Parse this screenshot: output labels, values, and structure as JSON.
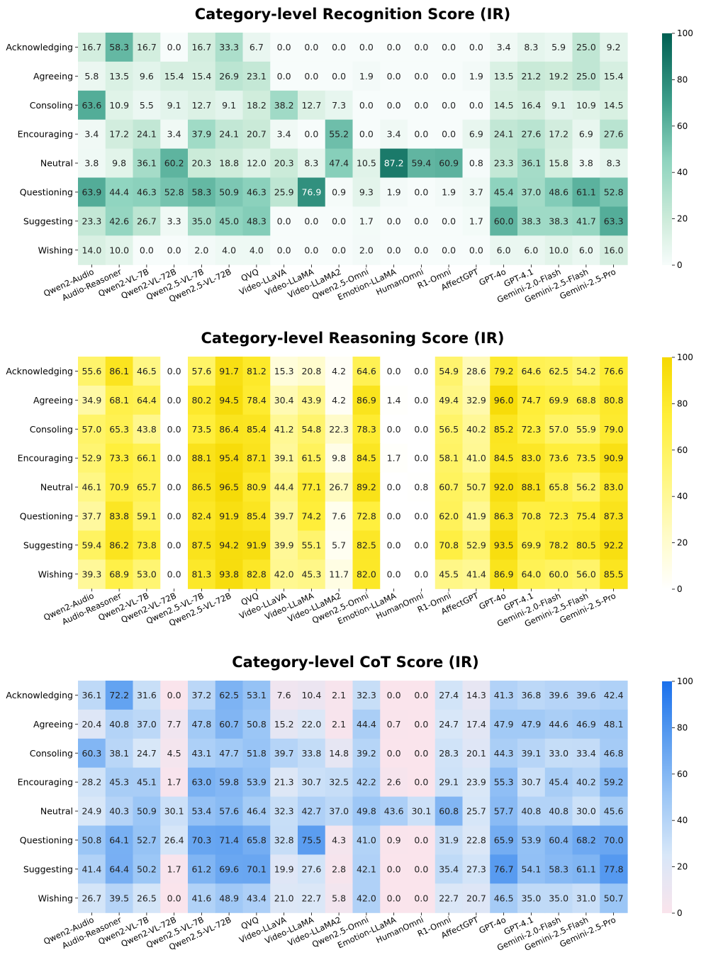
{
  "chart_data": [
    {
      "type": "heatmap",
      "title": "Category-level Recognition Score (IR)",
      "colormap": "teal",
      "zlim": [
        0,
        100
      ],
      "colorbar_ticks": [
        "0",
        "20",
        "40",
        "60",
        "80",
        "100"
      ],
      "rows": [
        "Acknowledging",
        "Agreeing",
        "Consoling",
        "Encouraging",
        "Neutral",
        "Questioning",
        "Suggesting",
        "Wishing"
      ],
      "columns": [
        "Qwen2-Audio",
        "Audio-Reasoner",
        "Qwen2-VL-7B",
        "Qwen2-VL-72B",
        "Qwen2.5-VL-7B",
        "Qwen2.5-VL-72B",
        "QVQ",
        "Video-LLaVA",
        "Video-LLaMA",
        "Video-LLaMA2",
        "Qwen2.5-Omni",
        "Emotion-LLaMA",
        "HumanOmni",
        "R1-Omni",
        "AffectGPT",
        "GPT-4o",
        "GPT-4.1",
        "Gemini-2.0-Flash",
        "Gemini-2.5-Flash",
        "Gemini-2.5-Pro"
      ],
      "values": [
        [
          "16.7",
          "58.3",
          "16.7",
          "0.0",
          "16.7",
          "33.3",
          "6.7",
          "0.0",
          "0.0",
          "0.0",
          "0.0",
          "0.0",
          "0.0",
          "0.0",
          "0.0",
          "3.4",
          "8.3",
          "5.9",
          "25.0",
          "9.2"
        ],
        [
          "5.8",
          "13.5",
          "9.6",
          "15.4",
          "15.4",
          "26.9",
          "23.1",
          "0.0",
          "0.0",
          "0.0",
          "1.9",
          "0.0",
          "0.0",
          "0.0",
          "1.9",
          "13.5",
          "21.2",
          "19.2",
          "25.0",
          "15.4"
        ],
        [
          "63.6",
          "10.9",
          "5.5",
          "9.1",
          "12.7",
          "9.1",
          "18.2",
          "38.2",
          "12.7",
          "7.3",
          "0.0",
          "0.0",
          "0.0",
          "0.0",
          "0.0",
          "14.5",
          "16.4",
          "9.1",
          "10.9",
          "14.5"
        ],
        [
          "3.4",
          "17.2",
          "24.1",
          "3.4",
          "37.9",
          "24.1",
          "20.7",
          "3.4",
          "0.0",
          "55.2",
          "0.0",
          "3.4",
          "0.0",
          "0.0",
          "6.9",
          "24.1",
          "27.6",
          "17.2",
          "6.9",
          "27.6"
        ],
        [
          "3.8",
          "9.8",
          "36.1",
          "60.2",
          "20.3",
          "18.8",
          "12.0",
          "20.3",
          "8.3",
          "47.4",
          "10.5",
          "87.2",
          "59.4",
          "60.9",
          "0.8",
          "23.3",
          "36.1",
          "15.8",
          "3.8",
          "8.3"
        ],
        [
          "63.9",
          "44.4",
          "46.3",
          "52.8",
          "58.3",
          "50.9",
          "46.3",
          "25.9",
          "76.9",
          "0.9",
          "9.3",
          "1.9",
          "0.0",
          "1.9",
          "3.7",
          "45.4",
          "37.0",
          "48.6",
          "61.1",
          "52.8"
        ],
        [
          "23.3",
          "42.6",
          "26.7",
          "3.3",
          "35.0",
          "45.0",
          "48.3",
          "0.0",
          "0.0",
          "0.0",
          "1.7",
          "0.0",
          "0.0",
          "0.0",
          "1.7",
          "60.0",
          "38.3",
          "38.3",
          "41.7",
          "63.3"
        ],
        [
          "14.0",
          "10.0",
          "0.0",
          "0.0",
          "2.0",
          "4.0",
          "4.0",
          "0.0",
          "0.0",
          "0.0",
          "2.0",
          "0.0",
          "0.0",
          "0.0",
          "0.0",
          "6.0",
          "6.0",
          "10.0",
          "6.0",
          "16.0"
        ]
      ]
    },
    {
      "type": "heatmap",
      "title": "Category-level Reasoning Score (IR)",
      "colormap": "yellow",
      "zlim": [
        0,
        100
      ],
      "colorbar_ticks": [
        "0",
        "20",
        "40",
        "60",
        "80",
        "100"
      ],
      "rows": [
        "Acknowledging",
        "Agreeing",
        "Consoling",
        "Encouraging",
        "Neutral",
        "Questioning",
        "Suggesting",
        "Wishing"
      ],
      "columns": [
        "Qwen2-Audio",
        "Audio-Reasoner",
        "Qwen2-VL-7B",
        "Qwen2-VL-72B",
        "Qwen2.5-VL-7B",
        "Qwen2.5-VL-72B",
        "QVQ",
        "Video-LLaVA",
        "Video-LLaMA",
        "Video-LLaMA2",
        "Qwen2.5-Omni",
        "Emotion-LLaMA",
        "HumanOmni",
        "R1-Omni",
        "AffectGPT",
        "GPT-4o",
        "GPT-4.1",
        "Gemini-2.0-Flash",
        "Gemini-2.5-Flash",
        "Gemini-2.5-Pro"
      ],
      "values": [
        [
          "55.6",
          "86.1",
          "46.5",
          "0.0",
          "57.6",
          "91.7",
          "81.2",
          "15.3",
          "20.8",
          "4.2",
          "64.6",
          "0.0",
          "0.0",
          "54.9",
          "28.6",
          "79.2",
          "64.6",
          "62.5",
          "54.2",
          "76.6"
        ],
        [
          "34.9",
          "68.1",
          "64.4",
          "0.0",
          "80.2",
          "94.5",
          "78.4",
          "30.4",
          "43.9",
          "4.2",
          "86.9",
          "1.4",
          "0.0",
          "49.4",
          "32.9",
          "96.0",
          "74.7",
          "69.9",
          "68.8",
          "80.8"
        ],
        [
          "57.0",
          "65.3",
          "43.8",
          "0.0",
          "73.5",
          "86.4",
          "85.4",
          "41.2",
          "54.8",
          "22.3",
          "78.3",
          "0.0",
          "0.0",
          "56.5",
          "40.2",
          "85.2",
          "72.3",
          "57.0",
          "55.9",
          "79.0"
        ],
        [
          "52.9",
          "73.3",
          "66.1",
          "0.0",
          "88.1",
          "95.4",
          "87.1",
          "39.1",
          "61.5",
          "9.8",
          "84.5",
          "1.7",
          "0.0",
          "58.1",
          "41.0",
          "84.5",
          "83.0",
          "73.6",
          "73.5",
          "90.9"
        ],
        [
          "46.1",
          "70.9",
          "65.7",
          "0.0",
          "86.5",
          "96.5",
          "80.9",
          "44.4",
          "77.1",
          "26.7",
          "89.2",
          "0.0",
          "0.8",
          "60.7",
          "50.7",
          "92.0",
          "88.1",
          "65.8",
          "56.2",
          "83.0"
        ],
        [
          "37.7",
          "83.8",
          "59.1",
          "0.0",
          "82.4",
          "91.9",
          "85.4",
          "39.7",
          "74.2",
          "7.6",
          "72.8",
          "0.0",
          "0.0",
          "62.0",
          "41.9",
          "86.3",
          "70.8",
          "72.3",
          "75.4",
          "87.3"
        ],
        [
          "59.4",
          "86.2",
          "73.8",
          "0.0",
          "87.5",
          "94.2",
          "91.9",
          "39.9",
          "55.1",
          "5.7",
          "82.5",
          "0.0",
          "0.0",
          "70.8",
          "52.9",
          "93.5",
          "69.9",
          "78.2",
          "80.5",
          "92.2"
        ],
        [
          "39.3",
          "68.9",
          "53.0",
          "0.0",
          "81.3",
          "93.8",
          "82.8",
          "42.0",
          "45.3",
          "11.7",
          "82.0",
          "0.0",
          "0.0",
          "45.5",
          "41.4",
          "86.9",
          "64.0",
          "60.0",
          "56.0",
          "85.5"
        ]
      ]
    },
    {
      "type": "heatmap",
      "title": "Category-level CoT Score (IR)",
      "colormap": "pink-blue",
      "zlim": [
        0,
        100
      ],
      "colorbar_ticks": [
        "0",
        "20",
        "40",
        "60",
        "80",
        "100"
      ],
      "rows": [
        "Acknowledging",
        "Agreeing",
        "Consoling",
        "Encouraging",
        "Neutral",
        "Questioning",
        "Suggesting",
        "Wishing"
      ],
      "columns": [
        "Qwen2-Audio",
        "Audio-Reasoner",
        "Qwen2-VL-7B",
        "Qwen2-VL-72B",
        "Qwen2.5-VL-7B",
        "Qwen2.5-VL-72B",
        "QVQ",
        "Video-LLaVA",
        "Video-LLaMA",
        "Video-LLaMA2",
        "Qwen2.5-Omni",
        "Emotion-LLaMA",
        "HumanOmni",
        "R1-Omni",
        "AffectGPT",
        "GPT-4o",
        "GPT-4.1",
        "Gemini-2.0-Flash",
        "Gemini-2.5-Flash",
        "Gemini-2.5-Pro"
      ],
      "values": [
        [
          "36.1",
          "72.2",
          "31.6",
          "0.0",
          "37.2",
          "62.5",
          "53.1",
          "7.6",
          "10.4",
          "2.1",
          "32.3",
          "0.0",
          "0.0",
          "27.4",
          "14.3",
          "41.3",
          "36.8",
          "39.6",
          "39.6",
          "42.4"
        ],
        [
          "20.4",
          "40.8",
          "37.0",
          "7.7",
          "47.8",
          "60.7",
          "50.8",
          "15.2",
          "22.0",
          "2.1",
          "44.4",
          "0.7",
          "0.0",
          "24.7",
          "17.4",
          "47.9",
          "47.9",
          "44.6",
          "46.9",
          "48.1"
        ],
        [
          "60.3",
          "38.1",
          "24.7",
          "4.5",
          "43.1",
          "47.7",
          "51.8",
          "39.7",
          "33.8",
          "14.8",
          "39.2",
          "0.0",
          "0.0",
          "28.3",
          "20.1",
          "44.3",
          "39.1",
          "33.0",
          "33.4",
          "46.8"
        ],
        [
          "28.2",
          "45.3",
          "45.1",
          "1.7",
          "63.0",
          "59.8",
          "53.9",
          "21.3",
          "30.7",
          "32.5",
          "42.2",
          "2.6",
          "0.0",
          "29.1",
          "23.9",
          "55.3",
          "30.7",
          "45.4",
          "40.2",
          "59.2"
        ],
        [
          "24.9",
          "40.3",
          "50.9",
          "30.1",
          "53.4",
          "57.6",
          "46.4",
          "32.3",
          "42.7",
          "37.0",
          "49.8",
          "43.6",
          "30.1",
          "60.8",
          "25.7",
          "57.7",
          "40.8",
          "40.8",
          "30.0",
          "45.6"
        ],
        [
          "50.8",
          "64.1",
          "52.7",
          "26.4",
          "70.3",
          "71.4",
          "65.8",
          "32.8",
          "75.5",
          "4.3",
          "41.0",
          "0.9",
          "0.0",
          "31.9",
          "22.8",
          "65.9",
          "53.9",
          "60.4",
          "68.2",
          "70.0"
        ],
        [
          "41.4",
          "64.4",
          "50.2",
          "1.7",
          "61.2",
          "69.6",
          "70.1",
          "19.9",
          "27.6",
          "2.8",
          "42.1",
          "0.0",
          "0.0",
          "35.4",
          "27.3",
          "76.7",
          "54.1",
          "58.3",
          "61.1",
          "77.8"
        ],
        [
          "26.7",
          "39.5",
          "26.5",
          "0.0",
          "41.6",
          "48.9",
          "43.4",
          "21.0",
          "22.7",
          "5.8",
          "42.0",
          "0.0",
          "0.0",
          "22.7",
          "20.7",
          "46.5",
          "35.0",
          "35.0",
          "31.0",
          "50.7"
        ]
      ]
    }
  ]
}
